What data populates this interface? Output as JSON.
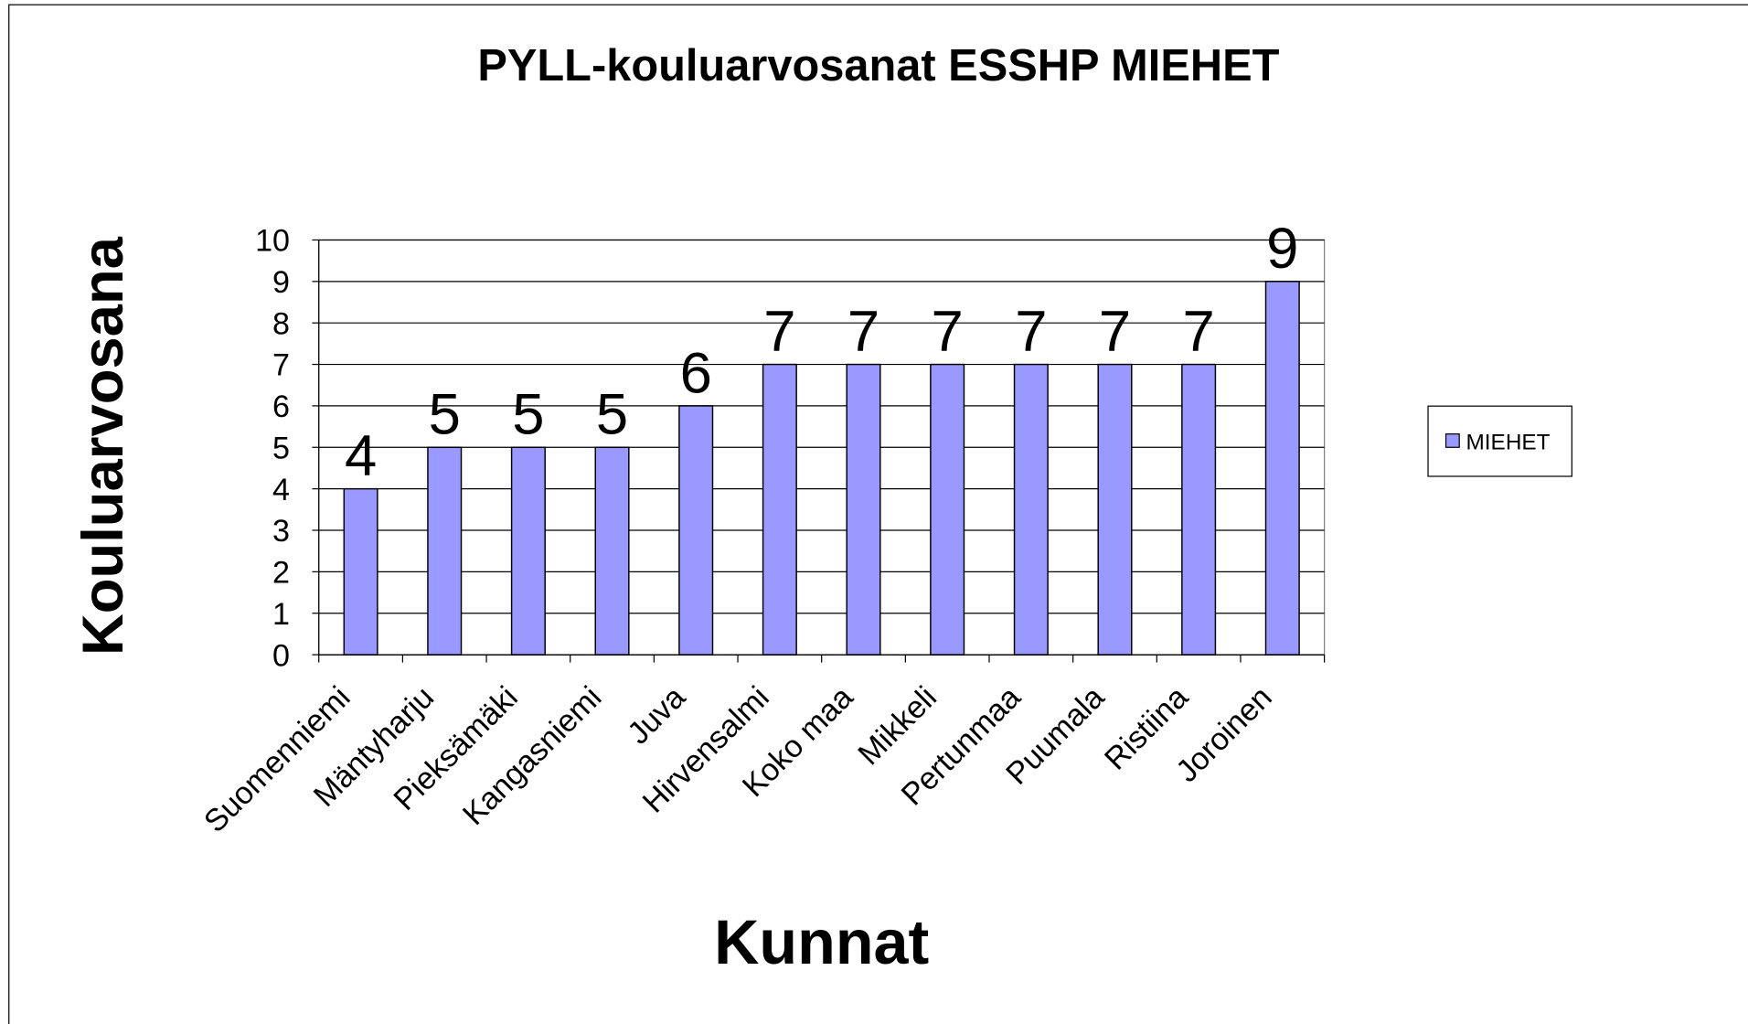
{
  "chart_data": {
    "type": "bar",
    "title": "PYLL-kouluarvosanat ESSHP MIEHET",
    "x_label": "Kunnat",
    "y_label": "Kouluarvosana",
    "categories": [
      "Suomenniemi",
      "Mäntyharju",
      "Pieksämäki",
      "Kangasniemi",
      "Juva",
      "Hirvensalmi",
      "Koko maa",
      "Mikkeli",
      "Pertunmaa",
      "Puumala",
      "Ristiina",
      "Joroinen"
    ],
    "series": [
      {
        "name": "MIEHET",
        "color": "#9999ff",
        "values": [
          4,
          5,
          5,
          5,
          6,
          7,
          7,
          7,
          7,
          7,
          7,
          9
        ]
      }
    ],
    "ylim": [
      0,
      10
    ],
    "yticks": [
      0,
      1,
      2,
      3,
      4,
      5,
      6,
      7,
      8,
      9,
      10
    ],
    "grid": true,
    "legend": "right"
  }
}
